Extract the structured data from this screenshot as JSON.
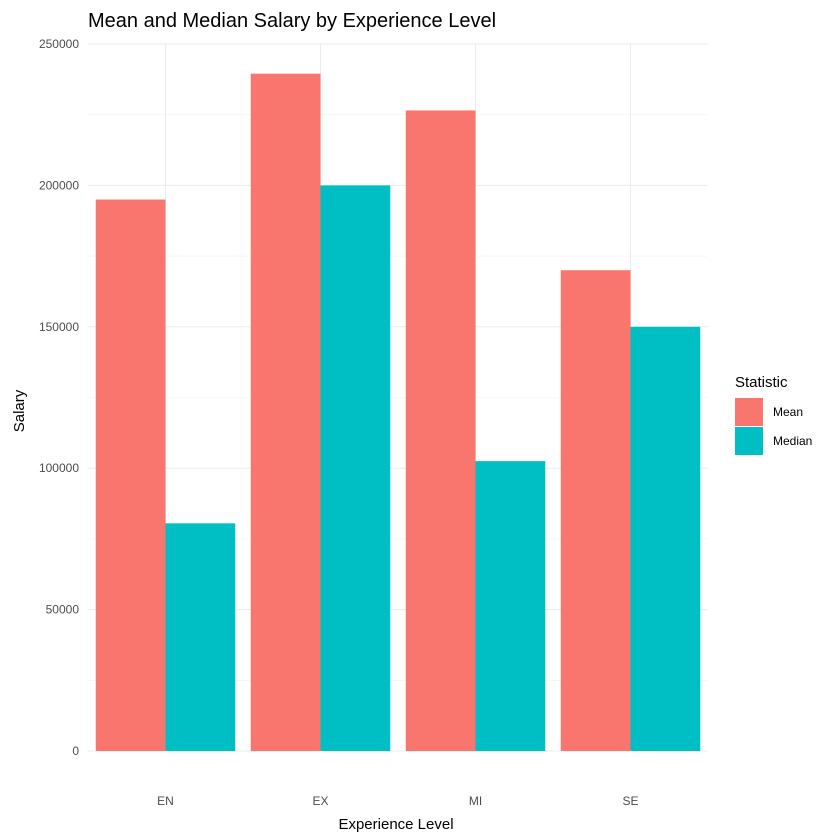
{
  "chart_data": {
    "type": "bar",
    "title": "Mean and Median Salary by Experience Level",
    "xlabel": "Experience Level",
    "ylabel": "Salary",
    "categories": [
      "EN",
      "EX",
      "MI",
      "SE"
    ],
    "series": [
      {
        "name": "Mean",
        "color": "#F8766D",
        "values": [
          195000,
          239500,
          226500,
          170000
        ]
      },
      {
        "name": "Median",
        "color": "#00BFC4",
        "values": [
          80500,
          200000,
          102500,
          150000
        ]
      }
    ],
    "ylim": [
      0,
      250000
    ],
    "yticks": [
      0,
      50000,
      100000,
      150000,
      200000,
      250000
    ],
    "ytick_labels": [
      "0",
      "50000",
      "100000",
      "150000",
      "200000",
      "250000"
    ],
    "grid": true,
    "legend": {
      "title": "Statistic",
      "position": "right"
    }
  }
}
